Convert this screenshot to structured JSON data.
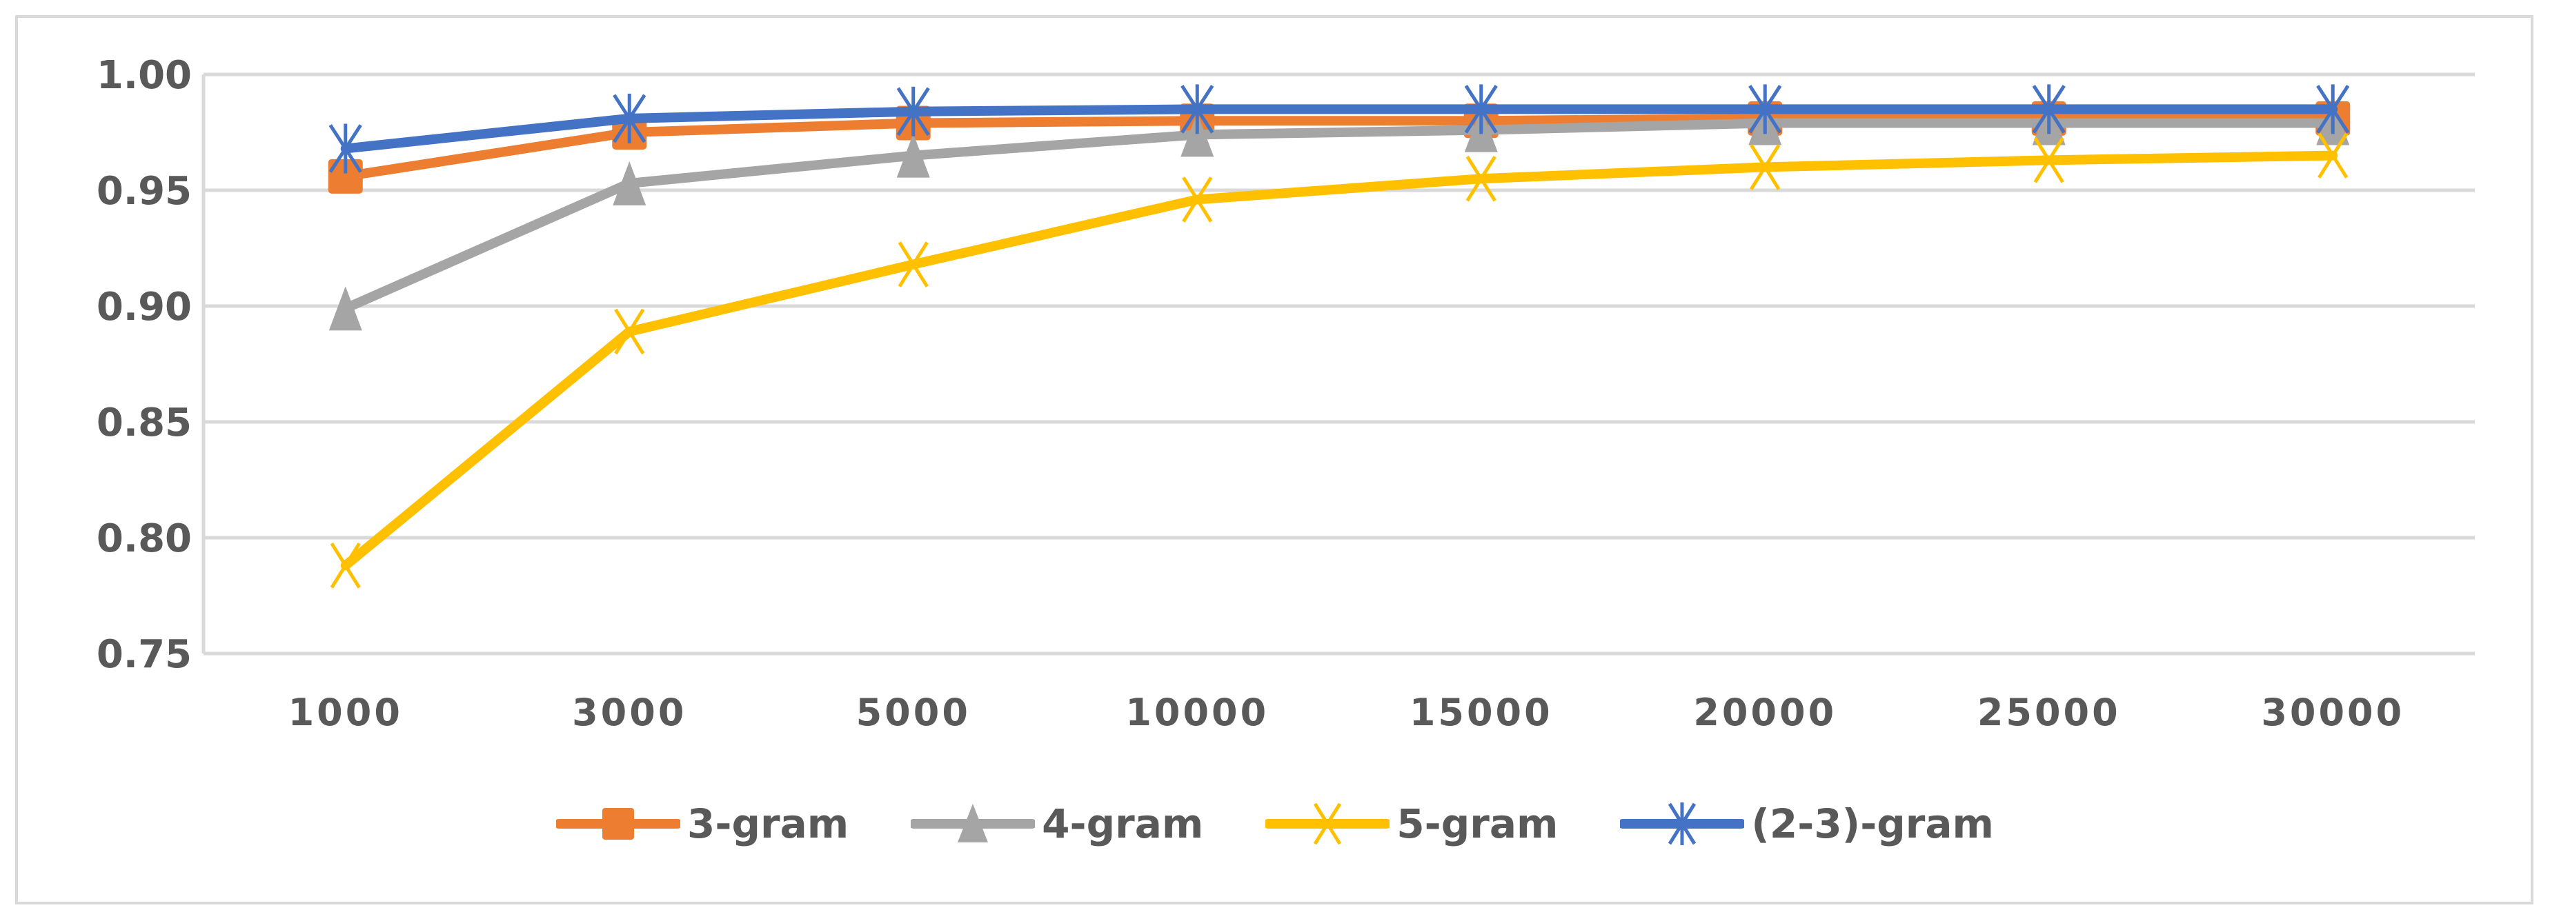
{
  "chart_data": {
    "type": "line",
    "title": "",
    "xlabel": "",
    "ylabel": "",
    "categories": [
      "1000",
      "3000",
      "5000",
      "10000",
      "15000",
      "20000",
      "25000",
      "30000"
    ],
    "ylim": [
      0.75,
      1.0
    ],
    "yticks": [
      "1.00",
      "0.95",
      "0.90",
      "0.85",
      "0.80",
      "0.75"
    ],
    "grid": true,
    "legend_position": "bottom",
    "series": [
      {
        "name": "3-gram",
        "color": "#ED7D31",
        "marker": "square",
        "values": [
          0.956,
          0.975,
          0.979,
          0.98,
          0.98,
          0.981,
          0.981,
          0.981
        ]
      },
      {
        "name": "4-gram",
        "color": "#A5A5A5",
        "marker": "triangle",
        "values": [
          0.899,
          0.953,
          0.965,
          0.974,
          0.976,
          0.979,
          0.979,
          0.979
        ]
      },
      {
        "name": "5-gram",
        "color": "#FFC000",
        "marker": "x",
        "values": [
          0.788,
          0.889,
          0.918,
          0.946,
          0.955,
          0.96,
          0.963,
          0.965
        ]
      },
      {
        "name": "(2-3)-gram",
        "color": "#4472C4",
        "marker": "star",
        "values": [
          0.968,
          0.981,
          0.984,
          0.985,
          0.985,
          0.985,
          0.985,
          0.985
        ]
      }
    ]
  },
  "legend": {
    "items": [
      {
        "label": "3-gram"
      },
      {
        "label": "4-gram"
      },
      {
        "label": "5-gram"
      },
      {
        "label": "(2-3)-gram"
      }
    ]
  }
}
